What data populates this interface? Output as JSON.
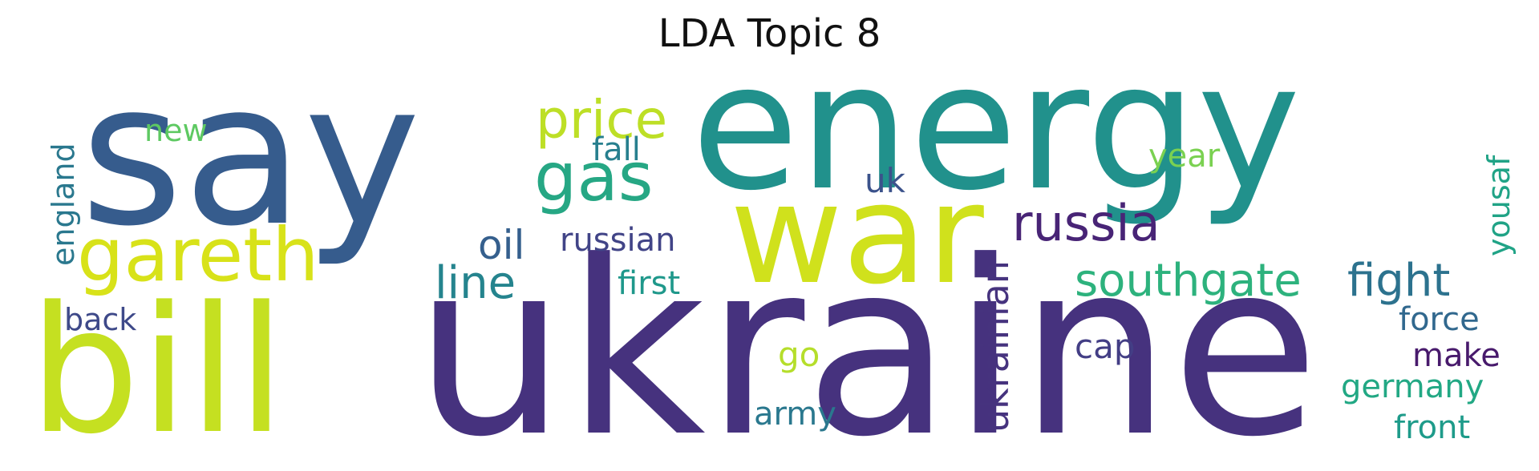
{
  "chart_data": {
    "type": "wordcloud",
    "title": "LDA Topic 8",
    "words": [
      {
        "text": "ukraine",
        "color": "#46327e"
      },
      {
        "text": "energy",
        "color": "#21918c"
      },
      {
        "text": "say",
        "color": "#365c8d"
      },
      {
        "text": "war",
        "color": "#d0e11c"
      },
      {
        "text": "bill",
        "color": "#c5e021"
      },
      {
        "text": "gareth",
        "color": "#d8e219"
      },
      {
        "text": "gas",
        "color": "#26a784"
      },
      {
        "text": "price",
        "color": "#bddf26"
      },
      {
        "text": "russia",
        "color": "#482476"
      },
      {
        "text": "southgate",
        "color": "#2db27d"
      },
      {
        "text": "fight",
        "color": "#2c728e"
      },
      {
        "text": "line",
        "color": "#25848e"
      },
      {
        "text": "oil",
        "color": "#355f8d"
      },
      {
        "text": "russian",
        "color": "#414487"
      },
      {
        "text": "ukrainian",
        "color": "#46337e"
      },
      {
        "text": "england",
        "color": "#2a788e"
      },
      {
        "text": "yousaf",
        "color": "#20a386"
      },
      {
        "text": "fall",
        "color": "#277f8e"
      },
      {
        "text": "new",
        "color": "#5ec962"
      },
      {
        "text": "uk",
        "color": "#3b528b"
      },
      {
        "text": "year",
        "color": "#7ad151"
      },
      {
        "text": "first",
        "color": "#1f988b"
      },
      {
        "text": "back",
        "color": "#3e4989"
      },
      {
        "text": "go",
        "color": "#b5de2b"
      },
      {
        "text": "army",
        "color": "#2a788e"
      },
      {
        "text": "cap",
        "color": "#433e85"
      },
      {
        "text": "force",
        "color": "#31688e"
      },
      {
        "text": "make",
        "color": "#481a6c"
      },
      {
        "text": "germany",
        "color": "#22a884"
      },
      {
        "text": "front",
        "color": "#1e9b8a"
      }
    ]
  }
}
